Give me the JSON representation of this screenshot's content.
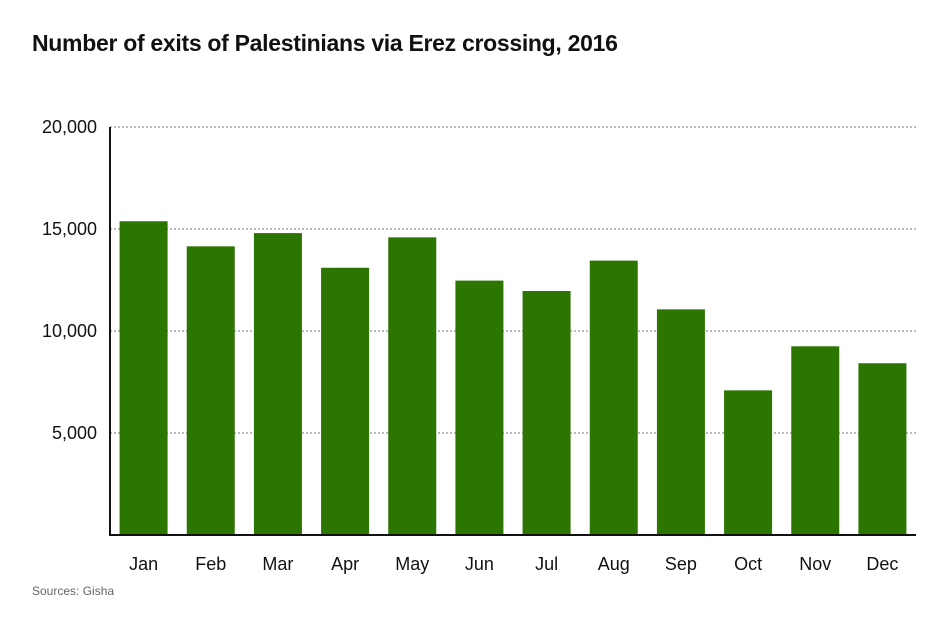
{
  "chart_data": {
    "type": "bar",
    "title": "Number of exits of Palestinians via Erez crossing, 2016",
    "xlabel": "",
    "ylabel": "",
    "categories": [
      "Jan",
      "Feb",
      "Mar",
      "Apr",
      "May",
      "Jun",
      "Jul",
      "Aug",
      "Sep",
      "Oct",
      "Nov",
      "Dec"
    ],
    "values": [
      15380,
      14150,
      14800,
      13100,
      14590,
      12470,
      11960,
      13450,
      11060,
      7090,
      9250,
      8420
    ],
    "ylim": [
      0,
      20000
    ],
    "yticks": [
      5000,
      10000,
      15000,
      20000
    ],
    "ytick_labels": [
      "5,000",
      "10,000",
      "15,000",
      "20,000"
    ],
    "grid": "horizontal dotted",
    "bar_color": "#2b7500",
    "source": "Sources: Gisha"
  }
}
